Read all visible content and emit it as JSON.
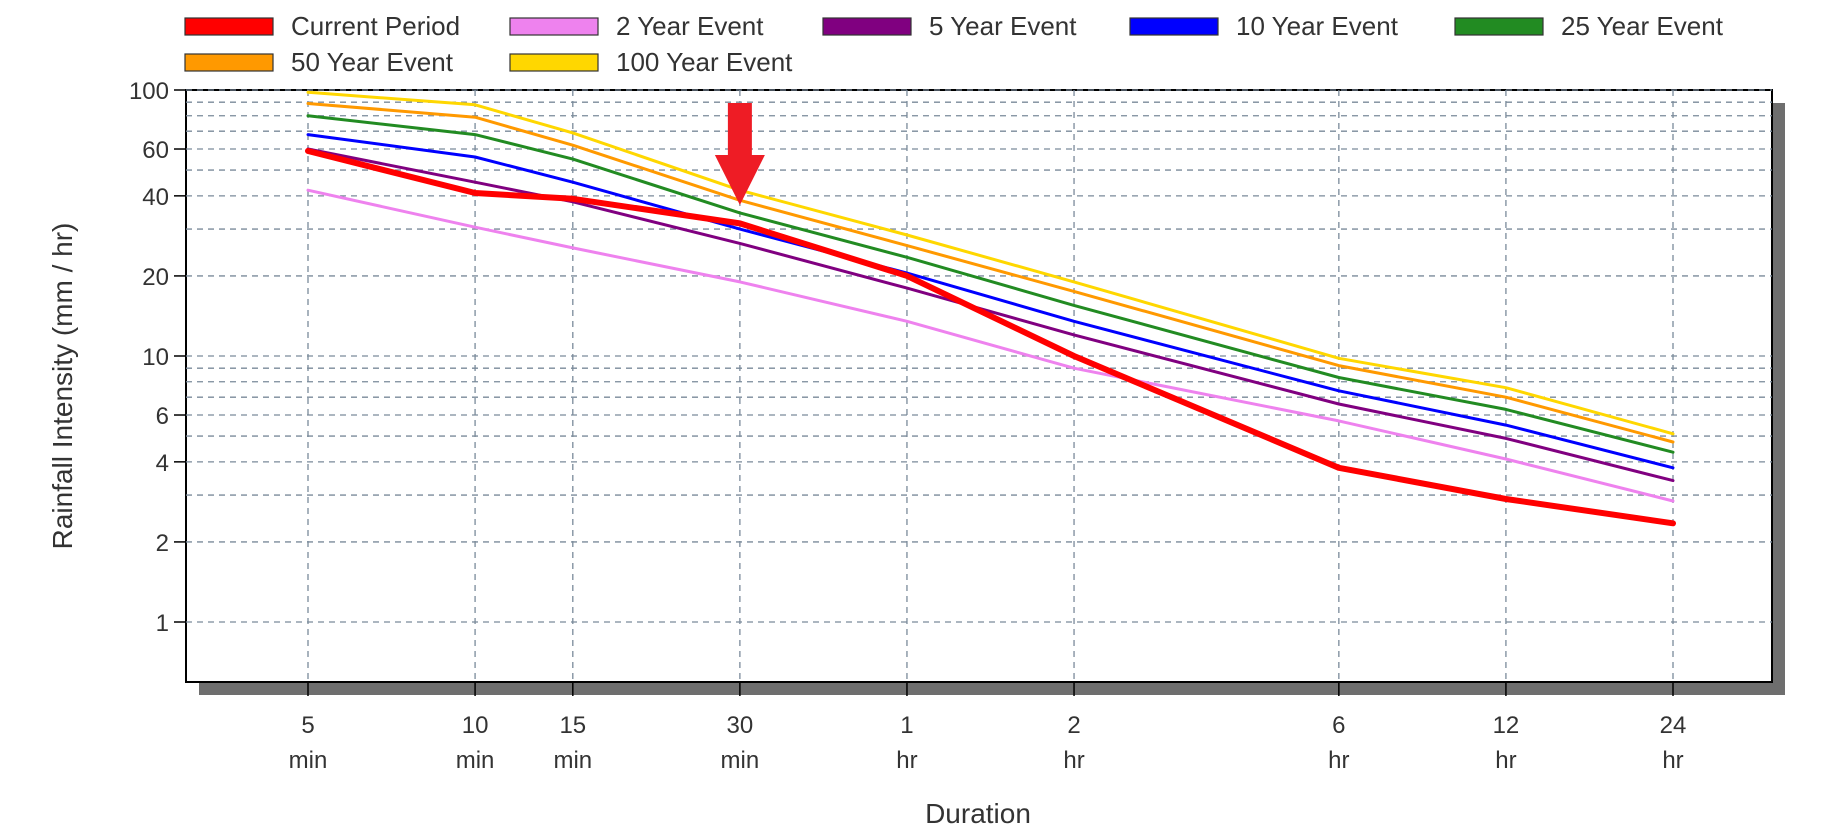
{
  "chart_data": {
    "type": "line",
    "xlabel": "Duration",
    "ylabel": "Rainfall Intensity (mm / hr)",
    "y_scale": "log",
    "ylim": [
      0.6,
      100
    ],
    "x_scale": "log",
    "xlim_minutes": [
      3.5,
      1900
    ],
    "x_ticks": [
      {
        "minutes": 5,
        "value": "5",
        "unit": "min"
      },
      {
        "minutes": 10,
        "value": "10",
        "unit": "min"
      },
      {
        "minutes": 15,
        "value": "15",
        "unit": "min"
      },
      {
        "minutes": 30,
        "value": "30",
        "unit": "min"
      },
      {
        "minutes": 60,
        "value": "1",
        "unit": "hr"
      },
      {
        "minutes": 120,
        "value": "2",
        "unit": "hr"
      },
      {
        "minutes": 360,
        "value": "6",
        "unit": "hr"
      },
      {
        "minutes": 720,
        "value": "12",
        "unit": "hr"
      },
      {
        "minutes": 1440,
        "value": "24",
        "unit": "hr"
      }
    ],
    "y_tick_labels": [
      "100",
      "60",
      "40",
      "20",
      "10",
      "6",
      "4",
      "2",
      "1"
    ],
    "y_tick_values": [
      100,
      60,
      40,
      20,
      10,
      6,
      4,
      2,
      1
    ],
    "y_minor_gridlines": [
      90,
      80,
      70,
      50,
      30,
      9,
      8,
      7,
      5,
      3
    ],
    "grid": true,
    "legend_position": "top",
    "x_minutes": [
      5,
      10,
      15,
      30,
      60,
      120,
      360,
      720,
      1440
    ],
    "series": [
      {
        "name": "Current Period",
        "color": "#ff0000",
        "width": 6,
        "values": [
          59,
          41,
          39,
          31.5,
          20,
          10,
          3.8,
          2.9,
          2.35
        ]
      },
      {
        "name": "2 Year Event",
        "color": "#ee82ee",
        "width": 3,
        "values": [
          42,
          30.5,
          25.5,
          19,
          13.5,
          9,
          5.7,
          4.1,
          2.85
        ]
      },
      {
        "name": "5 Year Event",
        "color": "#800080",
        "width": 3,
        "values": [
          60,
          45,
          38,
          26.5,
          18,
          12,
          6.6,
          4.9,
          3.4
        ]
      },
      {
        "name": "10 Year Event",
        "color": "#0000ff",
        "width": 3,
        "values": [
          68,
          56,
          45,
          30,
          20.5,
          13.5,
          7.4,
          5.5,
          3.8
        ]
      },
      {
        "name": "25 Year Event",
        "color": "#228b22",
        "width": 3,
        "values": [
          80,
          68,
          55,
          34.5,
          23.5,
          15.5,
          8.3,
          6.3,
          4.35
        ]
      },
      {
        "name": "50 Year Event",
        "color": "#ff9900",
        "width": 3,
        "values": [
          89,
          79,
          62,
          38.5,
          26,
          17.5,
          9.2,
          7,
          4.75
        ]
      },
      {
        "name": "100 Year Event",
        "color": "#ffd700",
        "width": 3,
        "values": [
          98,
          88,
          69,
          42,
          28.5,
          19,
          9.8,
          7.6,
          5.1
        ]
      }
    ],
    "annotation": {
      "type": "arrow",
      "color": "#ee1c25",
      "at_minutes": 30,
      "pointing": "down"
    }
  }
}
